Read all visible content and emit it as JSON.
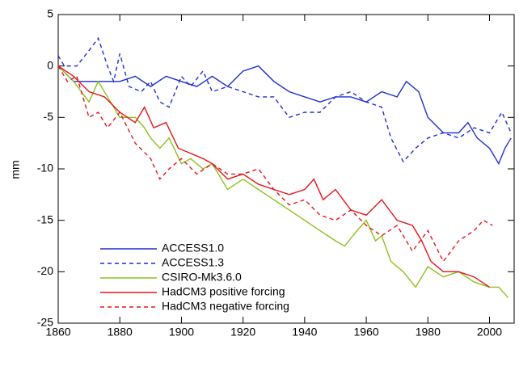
{
  "chart_data": {
    "type": "line",
    "y_label": "mm",
    "xlim": [
      1860,
      2008
    ],
    "xticks": [
      1860,
      1880,
      1900,
      1920,
      1940,
      1960,
      1980,
      2000
    ],
    "ylim": [
      -25,
      5
    ],
    "yticks": [
      -25,
      -20,
      -15,
      -10,
      -5,
      0,
      5
    ],
    "legend": "lower left",
    "series": [
      {
        "name": "ACCESS1.0",
        "color": "#1f2fd0",
        "dash": false,
        "x": [
          1860,
          1865,
          1870,
          1875,
          1880,
          1885,
          1890,
          1895,
          1900,
          1905,
          1910,
          1915,
          1920,
          1925,
          1930,
          1935,
          1940,
          1945,
          1950,
          1955,
          1960,
          1965,
          1970,
          1973,
          1977,
          1980,
          1985,
          1990,
          1993,
          1996,
          2000,
          2003,
          2005,
          2007
        ],
        "values": [
          0,
          -1.5,
          -1.5,
          -1.5,
          -1.5,
          -1,
          -2,
          -1,
          -1.5,
          -2,
          -1,
          -2,
          -0.5,
          0,
          -1.5,
          -2.5,
          -3,
          -3.5,
          -3,
          -3,
          -3.5,
          -2.5,
          -3,
          -1.5,
          -2.5,
          -5,
          -6.5,
          -6.5,
          -5.5,
          -7,
          -8,
          -9.5,
          -8,
          -7
        ]
      },
      {
        "name": "ACCESS1.3",
        "color": "#1f2fd0",
        "dash": true,
        "x": [
          1860,
          1862,
          1866,
          1870,
          1873,
          1876,
          1878,
          1880,
          1883,
          1887,
          1890,
          1893,
          1896,
          1900,
          1903,
          1907,
          1910,
          1915,
          1920,
          1925,
          1930,
          1935,
          1940,
          1945,
          1950,
          1955,
          1960,
          1965,
          1968,
          1972,
          1976,
          1980,
          1985,
          1990,
          1995,
          2000,
          2004,
          2007
        ],
        "values": [
          1,
          0,
          0,
          1.5,
          2.7,
          0,
          -1.5,
          1.2,
          -2,
          -2.5,
          -1.5,
          -3.5,
          -4,
          -1,
          -2,
          -0.5,
          -2.5,
          -2,
          -2.5,
          -3,
          -3,
          -5,
          -4.5,
          -4.5,
          -3,
          -2.5,
          -3.5,
          -4,
          -7,
          -9.3,
          -8,
          -7,
          -6.5,
          -7,
          -6,
          -6.5,
          -4.5,
          -6.5
        ]
      },
      {
        "name": "CSIRO-Mk3.6.0",
        "color": "#8cc21e",
        "dash": false,
        "x": [
          1860,
          1865,
          1870,
          1873,
          1877,
          1880,
          1885,
          1888,
          1890,
          1893,
          1896,
          1900,
          1903,
          1907,
          1910,
          1915,
          1920,
          1925,
          1930,
          1935,
          1940,
          1945,
          1950,
          1953,
          1957,
          1960,
          1963,
          1965,
          1968,
          1972,
          1976,
          1980,
          1985,
          1990,
          1995,
          2000,
          2003,
          2006
        ],
        "values": [
          0,
          -1.5,
          -3.5,
          -1.5,
          -3.5,
          -5,
          -5,
          -6,
          -7,
          -8,
          -7,
          -9.5,
          -9,
          -10,
          -9.5,
          -12,
          -11,
          -12,
          -13,
          -14,
          -15,
          -16,
          -17,
          -17.5,
          -16,
          -15,
          -17,
          -16.5,
          -19,
          -20,
          -21.5,
          -19.5,
          -20.5,
          -20,
          -21,
          -21.5,
          -21.5,
          -22.5
        ]
      },
      {
        "name": "HadCM3 positive forcing",
        "color": "#e8141b",
        "dash": false,
        "x": [
          1860,
          1865,
          1870,
          1875,
          1880,
          1885,
          1888,
          1891,
          1895,
          1899,
          1903,
          1907,
          1910,
          1915,
          1920,
          1925,
          1930,
          1935,
          1940,
          1943,
          1946,
          1950,
          1955,
          1960,
          1965,
          1970,
          1975,
          1978,
          1981,
          1985,
          1990,
          1995,
          2000
        ],
        "values": [
          0,
          -1,
          -2.5,
          -3,
          -4.5,
          -5.5,
          -4,
          -6,
          -5.5,
          -8,
          -8.5,
          -9,
          -9.5,
          -11,
          -10.5,
          -11.5,
          -12,
          -12.5,
          -12,
          -11,
          -13,
          -12,
          -14,
          -14.5,
          -13,
          -15,
          -15.5,
          -17,
          -19,
          -20,
          -20,
          -20.5,
          -21.5
        ]
      },
      {
        "name": "HadCM3 negative forcing",
        "color": "#e8141b",
        "dash": true,
        "x": [
          1860,
          1863,
          1866,
          1870,
          1873,
          1876,
          1880,
          1885,
          1890,
          1893,
          1896,
          1900,
          1905,
          1910,
          1915,
          1920,
          1925,
          1930,
          1935,
          1940,
          1945,
          1950,
          1955,
          1960,
          1965,
          1970,
          1975,
          1980,
          1985,
          1990,
          1995,
          1998,
          2001
        ],
        "values": [
          0,
          -1.5,
          -1,
          -5,
          -4.5,
          -6,
          -4.5,
          -7.5,
          -9,
          -11,
          -10,
          -9,
          -10.5,
          -9.5,
          -10.5,
          -10.5,
          -10,
          -12,
          -13.5,
          -13,
          -14.5,
          -15,
          -14,
          -15.5,
          -16.5,
          -15.5,
          -18,
          -16,
          -19,
          -17,
          -16,
          -15,
          -15.5
        ]
      }
    ]
  }
}
